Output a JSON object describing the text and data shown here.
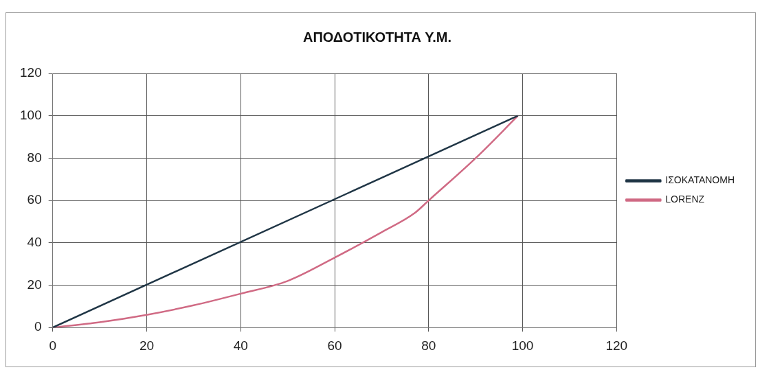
{
  "chart_data": {
    "type": "line",
    "title": "ΑΠΟΔΟΤΙΚΟΤΗΤΑ Υ.Μ.",
    "series": [
      {
        "name": "ΙΣΟΚΑΤΑΝΟΜΗ",
        "color": "#1f3545",
        "x": [
          0,
          99
        ],
        "values": [
          0,
          100
        ]
      },
      {
        "name": "LORENZ",
        "color": "#d06a84",
        "x": [
          0,
          10,
          20,
          30,
          40,
          50,
          60,
          70,
          77,
          80,
          90,
          99
        ],
        "values": [
          0,
          2.5,
          6,
          10.5,
          16,
          22,
          33,
          45,
          54,
          60,
          80,
          100
        ]
      }
    ],
    "xlim": [
      0,
      120
    ],
    "xticks": [
      0,
      20,
      40,
      60,
      80,
      100,
      120
    ],
    "ylim": [
      0,
      120
    ],
    "yticks": [
      0,
      20,
      40,
      60,
      80,
      100,
      120
    ],
    "grid": true,
    "legend": "right",
    "marker": "none",
    "line_style": "solid"
  }
}
